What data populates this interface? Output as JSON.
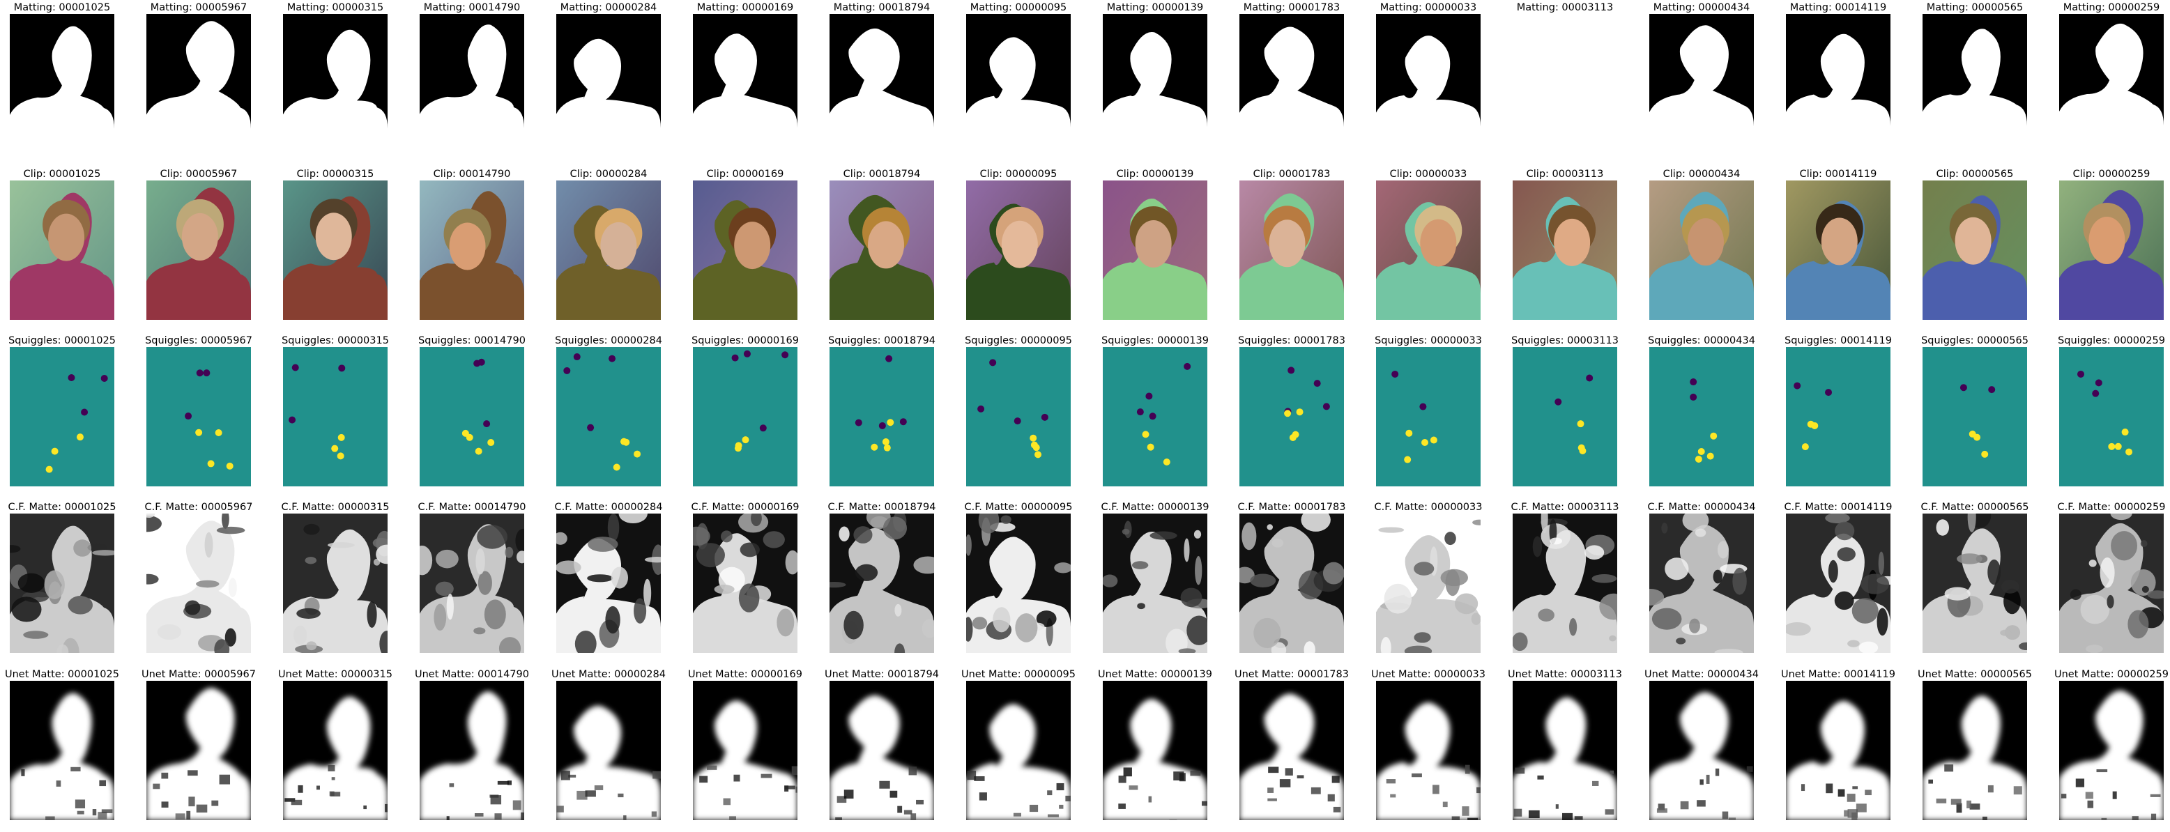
{
  "ids": [
    "00001025",
    "00005967",
    "00000315",
    "00014790",
    "00000284",
    "00000169",
    "00018794",
    "00000095",
    "00000139",
    "00001783",
    "00000033",
    "00003113",
    "00000434",
    "00014119",
    "00000565",
    "00000259"
  ],
  "rows": [
    {
      "kind": "matting",
      "prefix": "Matting: ",
      "titles": [
        "Matting: 00001025",
        "Matting: 00005967",
        "Matting: 00000315",
        "Matting: 00014790",
        "Matting: 00000284",
        "Matting: 00000169",
        "Matting: 00018794",
        "Matting: 00000095",
        "Matting: 00000139",
        "Matting: 00001783",
        "Matting: 00000033",
        "Matting: 00003113",
        "Matting: 00000434",
        "Matting: 00014119",
        "Matting: 00000565",
        "Matting: 00000259"
      ]
    },
    {
      "kind": "clip",
      "prefix": "Clip: ",
      "titles": [
        "Clip: 00001025",
        "Clip: 00005967",
        "Clip: 00000315",
        "Clip: 00014790",
        "Clip: 00000284",
        "Clip: 00000169",
        "Clip: 00018794",
        "Clip: 00000095",
        "Clip: 00000139",
        "Clip: 00001783",
        "Clip: 00000033",
        "Clip: 00003113",
        "Clip: 00000434",
        "Clip: 00014119",
        "Clip: 00000565",
        "Clip: 00000259"
      ]
    },
    {
      "kind": "squiggles",
      "prefix": "Squiggles: ",
      "titles": [
        "Squiggles: 00001025",
        "Squiggles: 00005967",
        "Squiggles: 00000315",
        "Squiggles: 00014790",
        "Squiggles: 00000284",
        "Squiggles: 00000169",
        "Squiggles: 00018794",
        "Squiggles: 00000095",
        "Squiggles: 00000139",
        "Squiggles: 00001783",
        "Squiggles: 00000033",
        "Squiggles: 00003113",
        "Squiggles: 00000434",
        "Squiggles: 00014119",
        "Squiggles: 00000565",
        "Squiggles: 00000259"
      ]
    },
    {
      "kind": "cfmatte",
      "prefix": "C.F. Matte: ",
      "titles": [
        "C.F. Matte: 00001025",
        "C.F. Matte: 00005967",
        "C.F. Matte: 00000315",
        "C.F. Matte: 00014790",
        "C.F. Matte: 00000284",
        "C.F. Matte: 00000169",
        "C.F. Matte: 00018794",
        "C.F. Matte: 00000095",
        "C.F. Matte: 00000139",
        "C.F. Matte: 00001783",
        "C.F. Matte: 00000033",
        "C.F. Matte: 00003113",
        "C.F. Matte: 00000434",
        "C.F. Matte: 00014119",
        "C.F. Matte: 00000565",
        "C.F. Matte: 00000259"
      ]
    },
    {
      "kind": "unet",
      "prefix": "Unet Matte: ",
      "titles": [
        "Unet Matte: 00001025",
        "Unet Matte: 00005967",
        "Unet Matte: 00000315",
        "Unet Matte: 00014790",
        "Unet Matte: 00000284",
        "Unet Matte: 00000169",
        "Unet Matte: 00018794",
        "Unet Matte: 00000095",
        "Unet Matte: 00000139",
        "Unet Matte: 00001783",
        "Unet Matte: 00000033",
        "Unet Matte: 00003113",
        "Unet Matte: 00000434",
        "Unet Matte: 00014119",
        "Unet Matte: 00000565",
        "Unet Matte: 00000259"
      ]
    }
  ],
  "colors": {
    "matte_bg": "#000000",
    "matte_fg": "#ffffff",
    "squiggle_bg": "#21918c",
    "squiggle_fg": "#fde725",
    "squiggle_bg_marks": "#440154"
  }
}
